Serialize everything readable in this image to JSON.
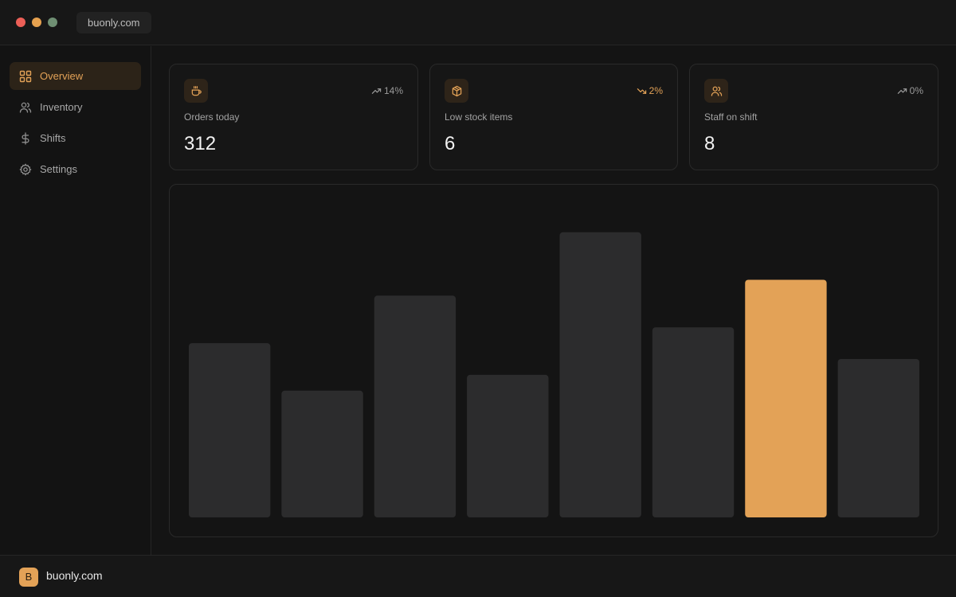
{
  "window": {
    "url": "buonly.com"
  },
  "sidebar": {
    "items": [
      {
        "label": "Overview",
        "icon": "grid-icon",
        "active": true
      },
      {
        "label": "Inventory",
        "icon": "users-icon",
        "active": false
      },
      {
        "label": "Shifts",
        "icon": "dollar-icon",
        "active": false
      },
      {
        "label": "Settings",
        "icon": "gear-icon",
        "active": false
      }
    ]
  },
  "cards": [
    {
      "label": "Orders today",
      "value": "312",
      "trend": "14%",
      "trend_direction": "up",
      "icon": "coffee-cup-icon"
    },
    {
      "label": "Low stock items",
      "value": "6",
      "trend": "2%",
      "trend_direction": "down",
      "icon": "box-icon"
    },
    {
      "label": "Staff on shift",
      "value": "8",
      "trend": "0%",
      "trend_direction": "up",
      "icon": "users-icon"
    }
  ],
  "footer": {
    "brand_initial": "B",
    "brand_name": "buonly.com"
  },
  "colors": {
    "accent": "#e3a257",
    "bar": "#2c2c2d",
    "background": "#141414"
  },
  "chart_data": {
    "type": "bar",
    "categories": [
      "",
      "",
      "",
      "",
      "",
      "",
      "",
      ""
    ],
    "values": [
      55,
      40,
      70,
      45,
      90,
      60,
      75,
      50
    ],
    "highlight_index": 6,
    "ylim": [
      0,
      100
    ],
    "title": "",
    "xlabel": "",
    "ylabel": "",
    "grid": false
  }
}
